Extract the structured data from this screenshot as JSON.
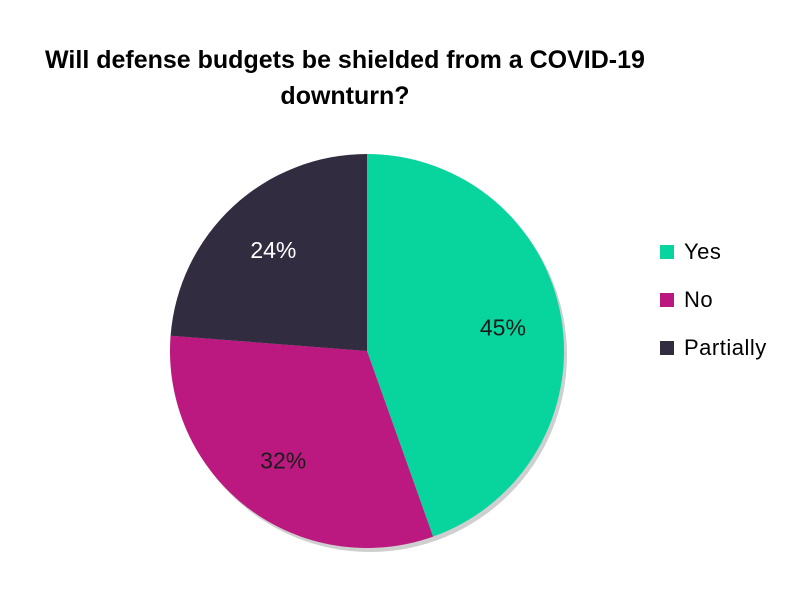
{
  "chart_data": {
    "type": "pie",
    "title": "Will defense budgets be shielded from a COVID-19 downturn?",
    "categories": [
      "Yes",
      "No",
      "Partially"
    ],
    "values": [
      45,
      32,
      24
    ],
    "labels": [
      "45%",
      "32%",
      "24%"
    ],
    "colors": [
      "#08d49e",
      "#bb197f",
      "#312c40"
    ],
    "label_colors": [
      "#1a1a1a",
      "#1a1a1a",
      "#ffffff"
    ],
    "legend_position": "right",
    "start": "top",
    "direction": "clockwise"
  }
}
